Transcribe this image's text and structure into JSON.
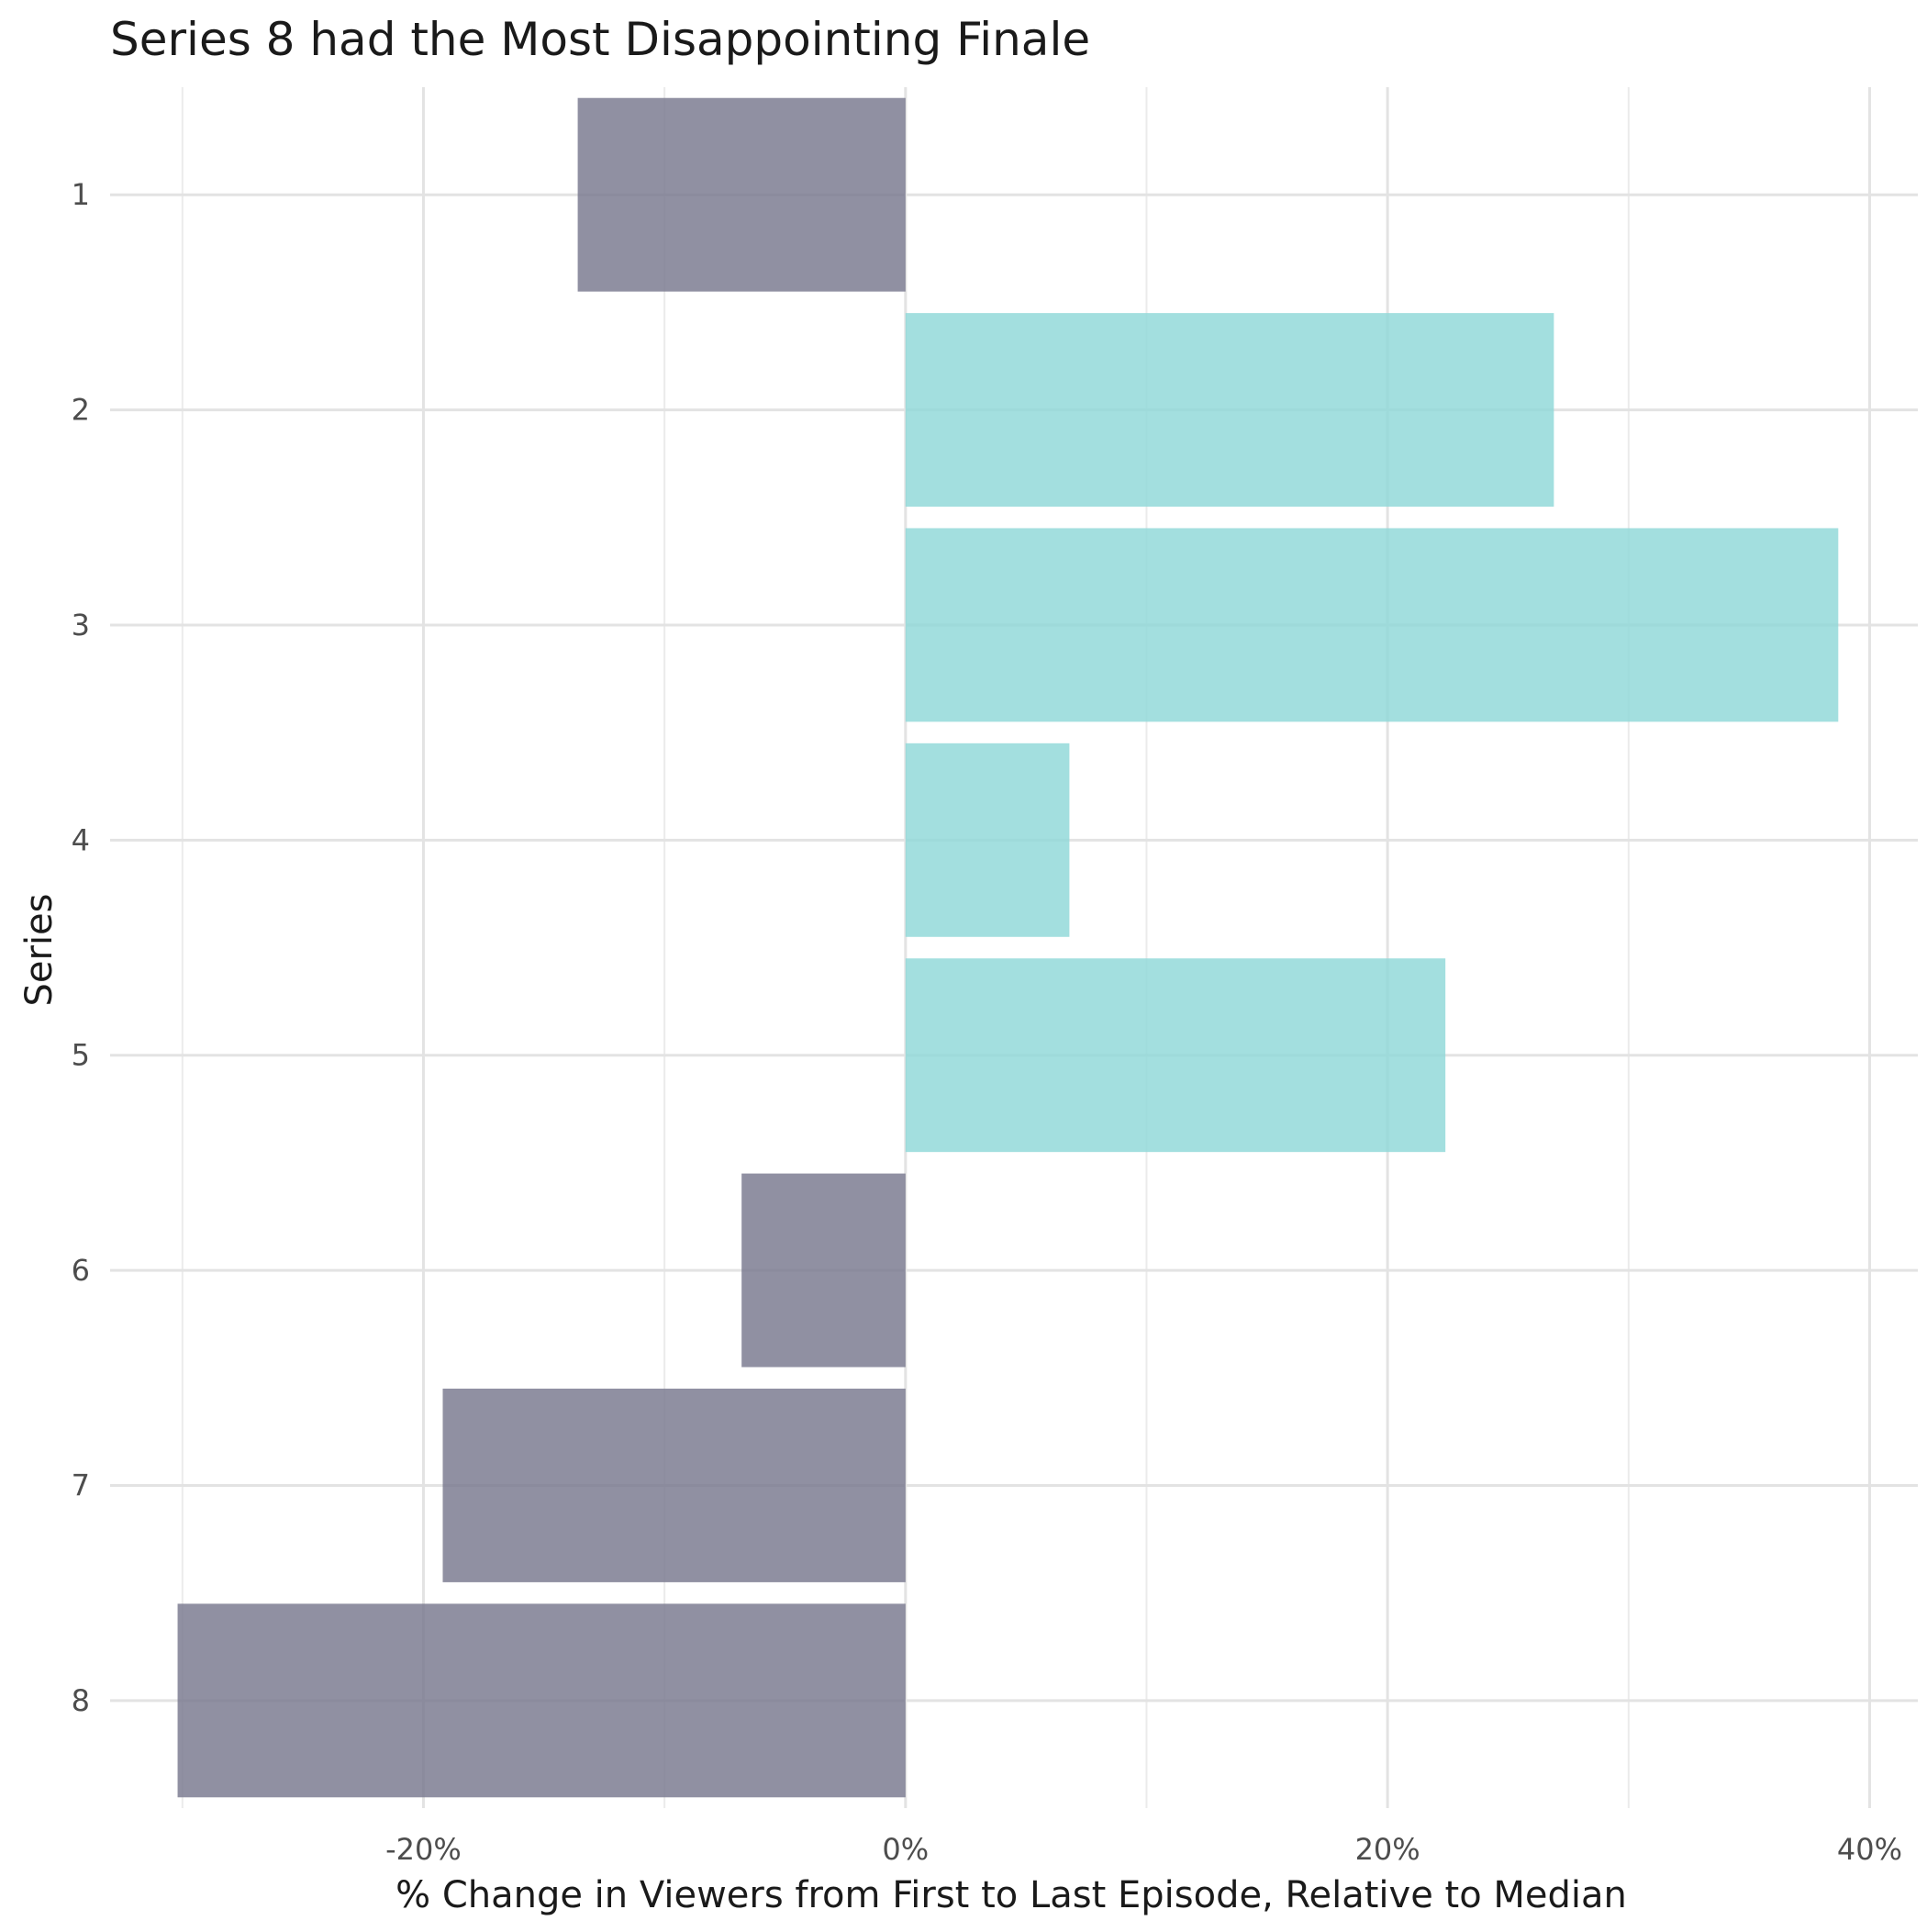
{
  "chart_data": {
    "type": "bar",
    "orientation": "horizontal",
    "title": "Series 8 had the Most Disappointing Finale",
    "xlabel": "% Change in Viewers from First to Last Episode, Relative to Median",
    "ylabel": "Series",
    "categories": [
      "1",
      "2",
      "3",
      "4",
      "5",
      "6",
      "7",
      "8"
    ],
    "values": [
      -13.6,
      26.9,
      38.7,
      6.8,
      22.4,
      -6.8,
      -19.2,
      -30.2
    ],
    "xlim": [
      -33,
      42
    ],
    "xticks": [
      -20,
      0,
      20,
      40
    ],
    "xtick_labels": [
      "-20%",
      "0%",
      "20%",
      "40%"
    ],
    "grid": true,
    "legend": "none",
    "colors": {
      "positive": "#8fd8d8",
      "negative": "#77778e"
    }
  }
}
